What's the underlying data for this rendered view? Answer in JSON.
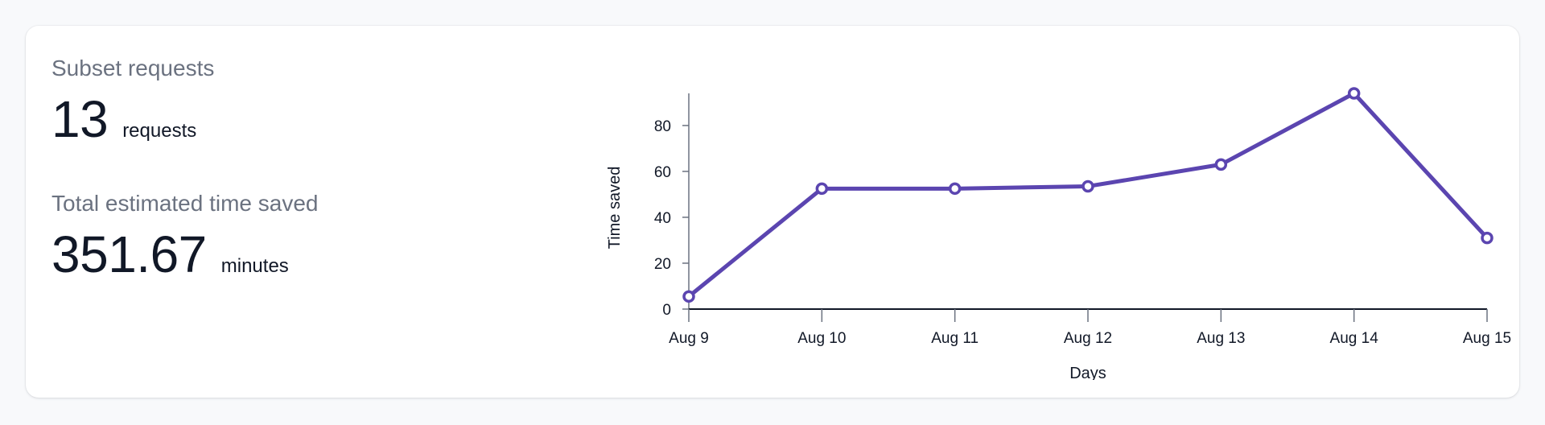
{
  "stats": {
    "requests": {
      "label": "Subset requests",
      "value": "13",
      "unit": "requests"
    },
    "time_saved": {
      "label": "Total estimated time saved",
      "value": "351.67",
      "unit": "minutes"
    }
  },
  "colors": {
    "line": "#5b45b0",
    "point_fill": "#ffffff",
    "axis": "#111827"
  },
  "chart_data": {
    "type": "line",
    "categories": [
      "Aug 9",
      "Aug 10",
      "Aug 11",
      "Aug 12",
      "Aug 13",
      "Aug 14",
      "Aug 15"
    ],
    "series": [
      {
        "values": [
          5.5,
          52.5,
          52.5,
          53.5,
          63,
          94,
          31
        ]
      }
    ],
    "xlabel": "Days",
    "ylabel": "Time saved",
    "ylim": [
      0,
      94
    ],
    "yticks": [
      0,
      20,
      40,
      60,
      80
    ],
    "grid": false,
    "legend": "none"
  }
}
